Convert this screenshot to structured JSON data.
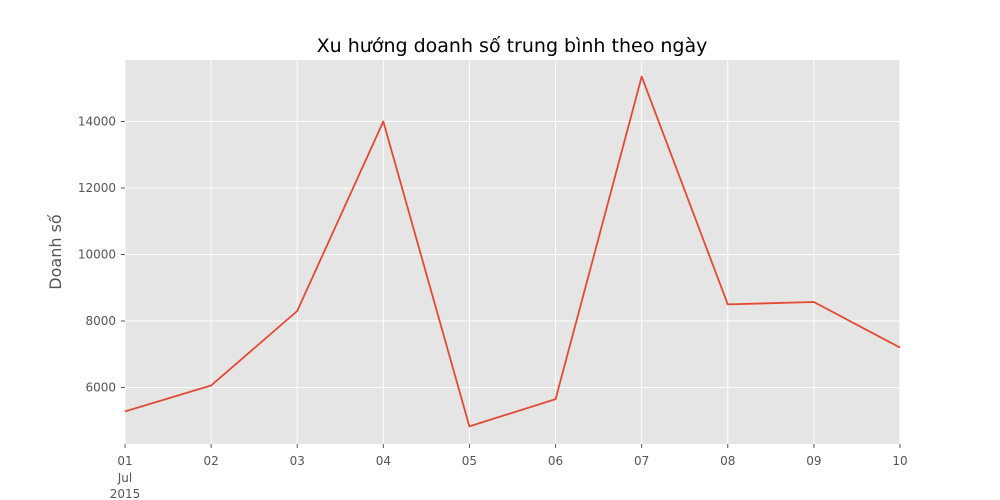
{
  "chart_data": {
    "type": "line",
    "title": "Xu hướng doanh số trung bình theo ngày",
    "xlabel": "",
    "ylabel": "Doanh số",
    "x_ticks": [
      "01",
      "02",
      "03",
      "04",
      "05",
      "06",
      "07",
      "08",
      "09",
      "10"
    ],
    "x_sublabels": [
      "Jul",
      "2015"
    ],
    "x": [
      "2015-07-01",
      "2015-07-02",
      "2015-07-03",
      "2015-07-04",
      "2015-07-05",
      "2015-07-06",
      "2015-07-07",
      "2015-07-08",
      "2015-07-09",
      "2015-07-10"
    ],
    "series": [
      {
        "values": [
          5280,
          6060,
          8300,
          14000,
          4830,
          5650,
          15350,
          8500,
          8570,
          7200
        ]
      }
    ],
    "ylim": [
      4300,
      15850
    ],
    "y_ticks": [
      6000,
      8000,
      10000,
      12000,
      14000
    ],
    "grid": true,
    "legend": "none",
    "colors": {
      "line": "#E24A33",
      "plot_background": "#E5E5E5",
      "grid": "#FFFFFF",
      "text": "#555555"
    }
  }
}
